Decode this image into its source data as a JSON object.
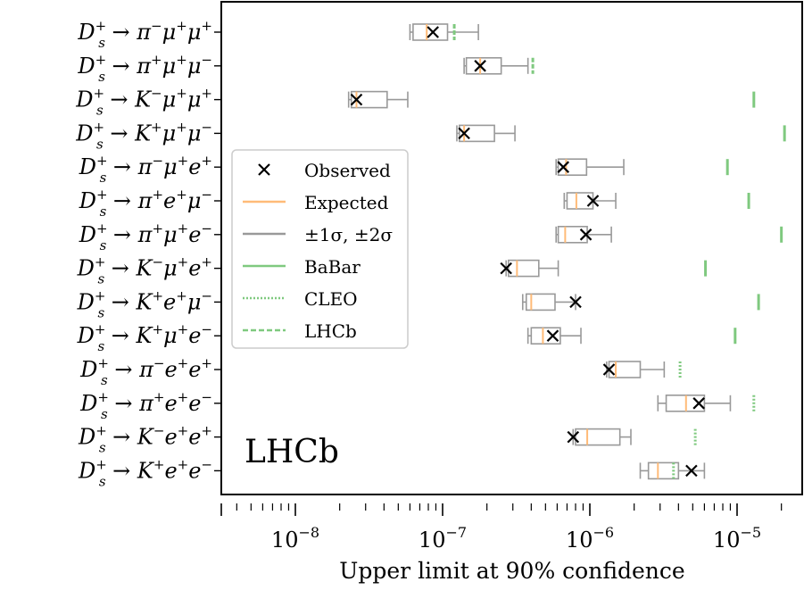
{
  "chart_data": {
    "type": "box",
    "xlabel": "Upper limit at 90% confidence",
    "x_scale": "log",
    "xlim": [
      3e-09,
      2.5e-05
    ],
    "x_tick_labels": [
      {
        "value": 1e-08,
        "base": "10",
        "exp": "−8"
      },
      {
        "value": 1e-07,
        "base": "10",
        "exp": "−7"
      },
      {
        "value": 1e-06,
        "base": "10",
        "exp": "−6"
      },
      {
        "value": 1e-05,
        "base": "10",
        "exp": "−5"
      }
    ],
    "watermark": "LHCb",
    "legend": {
      "placement": "left",
      "entries": [
        {
          "key": "observed",
          "label": "Observed",
          "style": "cross",
          "color": "#000000"
        },
        {
          "key": "expected",
          "label": "Expected",
          "style": "line",
          "color": "#ffbb78"
        },
        {
          "key": "bands",
          "label": "±1σ, ±2σ",
          "style": "line",
          "color": "#999999"
        },
        {
          "key": "babar",
          "label": "BaBar",
          "style": "solid",
          "color": "#7fc97f"
        },
        {
          "key": "cleo",
          "label": "CLEO",
          "style": "dotted",
          "color": "#7fc97f"
        },
        {
          "key": "lhcb",
          "label": "LHCb",
          "style": "dashed",
          "color": "#7fc97f"
        }
      ]
    },
    "channels": [
      {
        "label": {
          "q1": "π",
          "q1sup": "−",
          "q2": "μ",
          "q2sup": "+",
          "q3": "μ",
          "q3sup": "+"
        },
        "observed": 8.6e-08,
        "expected": 7.8e-08,
        "sigma1": [
          6.3e-08,
          1.08e-07
        ],
        "sigma2": [
          6e-08,
          1.75e-07
        ],
        "previous": {
          "experiment": "LHCb",
          "value": 1.2e-07
        }
      },
      {
        "label": {
          "q1": "π",
          "q1sup": "+",
          "q2": "μ",
          "q2sup": "+",
          "q3": "μ",
          "q3sup": "−"
        },
        "observed": 1.8e-07,
        "expected": 1.8e-07,
        "sigma1": [
          1.45e-07,
          2.5e-07
        ],
        "sigma2": [
          1.4e-07,
          3.8e-07
        ],
        "previous": {
          "experiment": "LHCb",
          "value": 4.1e-07
        }
      },
      {
        "label": {
          "q1": "K",
          "q1sup": "−",
          "q2": "μ",
          "q2sup": "+",
          "q3": "μ",
          "q3sup": "+"
        },
        "observed": 2.6e-08,
        "expected": 2.6e-08,
        "sigma1": [
          2.4e-08,
          4.2e-08
        ],
        "sigma2": [
          2.3e-08,
          5.8e-08
        ],
        "previous": {
          "experiment": "BaBar",
          "value": 1.3e-05
        }
      },
      {
        "label": {
          "q1": "K",
          "q1sup": "+",
          "q2": "μ",
          "q2sup": "+",
          "q3": "μ",
          "q3sup": "−"
        },
        "observed": 1.4e-07,
        "expected": 1.4e-07,
        "sigma1": [
          1.3e-07,
          2.25e-07
        ],
        "sigma2": [
          1.25e-07,
          3.1e-07
        ],
        "previous": {
          "experiment": "BaBar",
          "value": 2.1e-05
        }
      },
      {
        "label": {
          "q1": "π",
          "q1sup": "−",
          "q2": "μ",
          "q2sup": "+",
          "q3": "e",
          "q3sup": "+"
        },
        "observed": 6.6e-07,
        "expected": 6.9e-07,
        "sigma1": [
          6.1e-07,
          9.5e-07
        ],
        "sigma2": [
          5.9e-07,
          1.7e-06
        ],
        "previous": {
          "experiment": "BaBar",
          "value": 8.6e-06
        }
      },
      {
        "label": {
          "q1": "π",
          "q1sup": "+",
          "q2": "e",
          "q2sup": "+",
          "q3": "μ",
          "q3sup": "−"
        },
        "observed": 1.05e-06,
        "expected": 8.1e-07,
        "sigma1": [
          7e-07,
          1.05e-06
        ],
        "sigma2": [
          6.7e-07,
          1.5e-06
        ],
        "previous": {
          "experiment": "BaBar",
          "value": 1.2e-05
        }
      },
      {
        "label": {
          "q1": "π",
          "q1sup": "+",
          "q2": "μ",
          "q2sup": "+",
          "q3": "e",
          "q3sup": "−"
        },
        "observed": 9.4e-07,
        "expected": 6.8e-07,
        "sigma1": [
          6.1e-07,
          9.6e-07
        ],
        "sigma2": [
          5.9e-07,
          1.4e-06
        ],
        "previous": {
          "experiment": "BaBar",
          "value": 2e-05
        }
      },
      {
        "label": {
          "q1": "K",
          "q1sup": "−",
          "q2": "μ",
          "q2sup": "+",
          "q3": "e",
          "q3sup": "+"
        },
        "observed": 2.7e-07,
        "expected": 3.2e-07,
        "sigma1": [
          2.8e-07,
          4.5e-07
        ],
        "sigma2": [
          2.7e-07,
          6.1e-07
        ],
        "previous": {
          "experiment": "BaBar",
          "value": 6.1e-06
        }
      },
      {
        "label": {
          "q1": "K",
          "q1sup": "+",
          "q2": "e",
          "q2sup": "+",
          "q3": "μ",
          "q3sup": "−"
        },
        "observed": 8e-07,
        "expected": 4e-07,
        "sigma1": [
          3.7e-07,
          5.8e-07
        ],
        "sigma2": [
          3.5e-07,
          8e-07
        ],
        "previous": {
          "experiment": "BaBar",
          "value": 1.4e-05
        }
      },
      {
        "label": {
          "q1": "K",
          "q1sup": "+",
          "q2": "μ",
          "q2sup": "+",
          "q3": "e",
          "q3sup": "−"
        },
        "observed": 5.6e-07,
        "expected": 4.8e-07,
        "sigma1": [
          4e-07,
          6.3e-07
        ],
        "sigma2": [
          3.8e-07,
          8.7e-07
        ],
        "previous": {
          "experiment": "BaBar",
          "value": 9.7e-06
        }
      },
      {
        "label": {
          "q1": "π",
          "q1sup": "−",
          "q2": "e",
          "q2sup": "+",
          "q3": "e",
          "q3sup": "+"
        },
        "observed": 1.35e-06,
        "expected": 1.5e-06,
        "sigma1": [
          1.35e-06,
          2.2e-06
        ],
        "sigma2": [
          1.3e-06,
          3.2e-06
        ],
        "previous": {
          "experiment": "CLEO",
          "value": 4.1e-06
        }
      },
      {
        "label": {
          "q1": "π",
          "q1sup": "+",
          "q2": "e",
          "q2sup": "+",
          "q3": "e",
          "q3sup": "−"
        },
        "observed": 5.5e-06,
        "expected": 4.5e-06,
        "sigma1": [
          3.3e-06,
          6e-06
        ],
        "sigma2": [
          2.9e-06,
          9e-06
        ],
        "previous": {
          "experiment": "CLEO",
          "value": 1.3e-05
        }
      },
      {
        "label": {
          "q1": "K",
          "q1sup": "−",
          "q2": "e",
          "q2sup": "+",
          "q3": "e",
          "q3sup": "+"
        },
        "observed": 7.7e-07,
        "expected": 9.6e-07,
        "sigma1": [
          8e-07,
          1.6e-06
        ],
        "sigma2": [
          7.7e-07,
          1.9e-06
        ],
        "previous": {
          "experiment": "CLEO",
          "value": 5.2e-06
        }
      },
      {
        "label": {
          "q1": "K",
          "q1sup": "+",
          "q2": "e",
          "q2sup": "+",
          "q3": "e",
          "q3sup": "−"
        },
        "observed": 4.9e-06,
        "expected": 2.9e-06,
        "sigma1": [
          2.5e-06,
          4e-06
        ],
        "sigma2": [
          2.2e-06,
          6e-06
        ],
        "previous": {
          "experiment": "CLEO",
          "value": 3.7e-06
        }
      }
    ]
  }
}
